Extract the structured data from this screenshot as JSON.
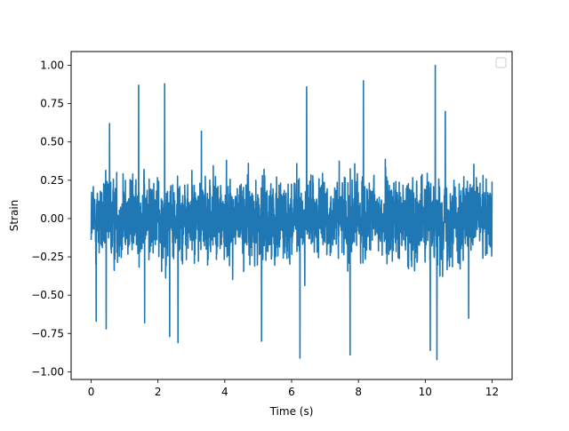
{
  "chart_data": {
    "type": "line",
    "title": "",
    "xlabel": "Time (s)",
    "ylabel": "Strain",
    "xlim": [
      -0.6,
      12.6
    ],
    "ylim": [
      -1.05,
      1.09
    ],
    "xticks": [
      0,
      2,
      4,
      6,
      8,
      10,
      12
    ],
    "xtick_labels": [
      "0",
      "2",
      "4",
      "6",
      "8",
      "10",
      "12"
    ],
    "yticks": [
      -1.0,
      -0.75,
      -0.5,
      -0.25,
      0.0,
      0.25,
      0.5,
      0.75,
      1.0
    ],
    "ytick_labels": [
      "−1.00",
      "−0.75",
      "−0.50",
      "−0.25",
      "0.00",
      "0.25",
      "0.50",
      "0.75",
      "1.00"
    ],
    "grid": false,
    "legend": {
      "placement": "top-right",
      "entries": []
    },
    "series": [
      {
        "color": "#1f77b4",
        "x_start": 0,
        "x_end": 12,
        "description_of_envelope": "dense noise signal spanning 0 to 12 s",
        "typical_range": [
          -0.5,
          0.5
        ],
        "peaks": [
          {
            "x": 0.55,
            "y": 0.62
          },
          {
            "x": 1.42,
            "y": 0.87
          },
          {
            "x": 2.2,
            "y": 0.88
          },
          {
            "x": 3.3,
            "y": 0.57
          },
          {
            "x": 6.45,
            "y": 0.86
          },
          {
            "x": 8.15,
            "y": 0.9
          },
          {
            "x": 10.3,
            "y": 1.0
          },
          {
            "x": 10.6,
            "y": 0.7
          }
        ],
        "troughs": [
          {
            "x": 0.15,
            "y": -0.67
          },
          {
            "x": 0.45,
            "y": -0.72
          },
          {
            "x": 1.6,
            "y": -0.68
          },
          {
            "x": 2.35,
            "y": -0.77
          },
          {
            "x": 2.6,
            "y": -0.81
          },
          {
            "x": 5.1,
            "y": -0.8
          },
          {
            "x": 6.25,
            "y": -0.91
          },
          {
            "x": 7.75,
            "y": -0.89
          },
          {
            "x": 10.15,
            "y": -0.86
          },
          {
            "x": 10.35,
            "y": -0.92
          },
          {
            "x": 11.3,
            "y": -0.65
          }
        ]
      }
    ]
  }
}
